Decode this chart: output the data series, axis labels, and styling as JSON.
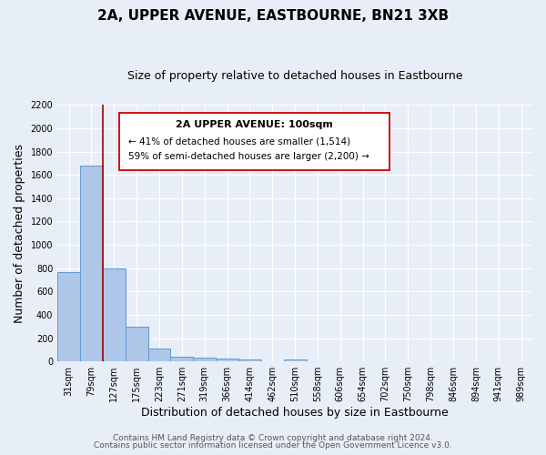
{
  "title": "2A, UPPER AVENUE, EASTBOURNE, BN21 3XB",
  "subtitle": "Size of property relative to detached houses in Eastbourne",
  "xlabel": "Distribution of detached houses by size in Eastbourne",
  "ylabel": "Number of detached properties",
  "footer_line1": "Contains HM Land Registry data © Crown copyright and database right 2024.",
  "footer_line2": "Contains public sector information licensed under the Open Government Licence v3.0.",
  "bin_labels": [
    "31sqm",
    "79sqm",
    "127sqm",
    "175sqm",
    "223sqm",
    "271sqm",
    "319sqm",
    "366sqm",
    "414sqm",
    "462sqm",
    "510sqm",
    "558sqm",
    "606sqm",
    "654sqm",
    "702sqm",
    "750sqm",
    "798sqm",
    "846sqm",
    "894sqm",
    "941sqm",
    "989sqm"
  ],
  "bar_values": [
    770,
    1680,
    800,
    295,
    110,
    40,
    30,
    25,
    20,
    0,
    20,
    0,
    0,
    0,
    0,
    0,
    0,
    0,
    0,
    0,
    0
  ],
  "bar_color": "#aec6e8",
  "bar_edge_color": "#5b9bd5",
  "ylim": [
    0,
    2200
  ],
  "yticks": [
    0,
    200,
    400,
    600,
    800,
    1000,
    1200,
    1400,
    1600,
    1800,
    2000,
    2200
  ],
  "red_line_x": 1.5,
  "annotation_title": "2A UPPER AVENUE: 100sqm",
  "annotation_line1": "← 41% of detached houses are smaller (1,514)",
  "annotation_line2": "59% of semi-detached houses are larger (2,200) →",
  "background_color": "#e8eef7",
  "plot_bg_color": "#e8eef7",
  "grid_color": "#ffffff",
  "title_fontsize": 11,
  "subtitle_fontsize": 9,
  "axis_label_fontsize": 9,
  "tick_fontsize": 7,
  "footer_fontsize": 6.5,
  "ann_title_fontsize": 8,
  "ann_text_fontsize": 7.5
}
